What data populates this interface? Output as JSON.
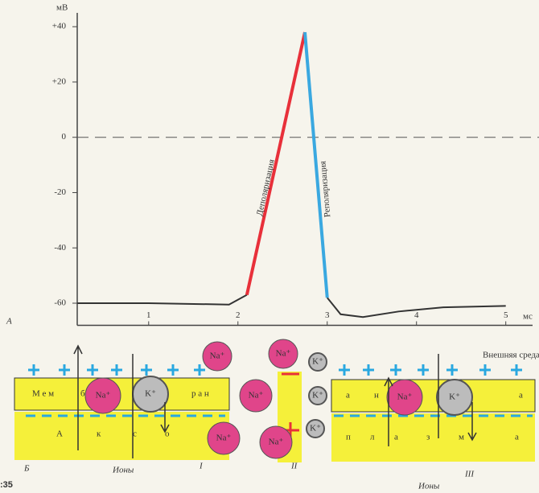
{
  "chart_data": {
    "type": "line",
    "y_label": "мВ",
    "x_label": "мс",
    "panel_label": "А",
    "x": [
      0.2,
      1,
      1.9,
      2.1,
      2.75,
      3.0,
      3.15,
      3.4,
      3.8,
      4.3,
      5.0
    ],
    "series": [
      {
        "color": "#333333",
        "values": [
          -60,
          -60,
          -60.5,
          -57,
          null,
          -58,
          -64,
          -65,
          -63,
          -61.5,
          -61
        ]
      },
      {
        "name": "Деполяризация",
        "color": "#e8303a",
        "values": [
          null,
          null,
          null,
          -57,
          38,
          null,
          null,
          null,
          null,
          null,
          null
        ]
      },
      {
        "name": "Реполяризация",
        "color": "#3aa8e0",
        "values": [
          null,
          null,
          null,
          null,
          38,
          -58,
          null,
          null,
          null,
          null,
          null
        ]
      }
    ],
    "xlim": [
      0.2,
      5.3
    ],
    "ylim": [
      -68,
      45
    ],
    "xticks": [
      1,
      2,
      3,
      4,
      5
    ],
    "yticks": [
      {
        "value": 40,
        "label": "+40"
      },
      {
        "value": 20,
        "label": "+20"
      },
      0,
      -20,
      -40,
      -60
    ]
  },
  "diagram": {
    "outside": "Внешняя среда",
    "membrane_left": [
      "М е м",
      "б",
      "р а н"
    ],
    "membrane_right": [
      "а",
      "н",
      "а"
    ],
    "axoplasm_left": [
      "А",
      "к",
      "с",
      "о"
    ],
    "axoplasm_right": [
      "п",
      "л",
      "а",
      "з",
      "м",
      "а"
    ],
    "ions": [
      "Na⁺",
      "K⁺",
      "Na⁺",
      "Na⁺",
      "Na⁺",
      "Na⁺",
      "Na⁺",
      "K⁺",
      "K⁺",
      "K⁺",
      "Na⁺",
      "K⁺"
    ],
    "captions": [
      "Б",
      "Ионы",
      "I",
      "II",
      "Ионы",
      "III"
    ],
    "page_number": ":35"
  }
}
